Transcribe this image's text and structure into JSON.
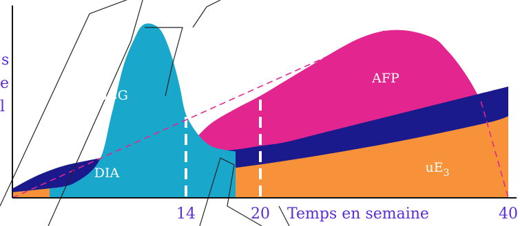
{
  "chart_data": {
    "type": "area",
    "xlabel": "Temps en semaine",
    "x_ticks": [
      "14",
      "20",
      "40"
    ],
    "y_label_fragments": [
      "s",
      "e",
      "l"
    ],
    "xlim": [
      0,
      40
    ],
    "ylim": [
      0,
      100
    ],
    "markers": [
      14,
      20
    ],
    "series": [
      {
        "name": "uE3",
        "color": "#f7923a",
        "x": [
          0,
          10,
          20,
          30,
          38,
          40
        ],
        "y": [
          3,
          10,
          18,
          29,
          40,
          44
        ]
      },
      {
        "name": "DIA",
        "color": "#1a1a8c",
        "x": [
          0,
          2,
          4,
          6,
          8,
          10,
          12,
          14,
          16,
          18,
          20,
          22,
          25,
          28,
          31,
          34,
          37,
          40
        ],
        "y": [
          5,
          12,
          17,
          20,
          22.5,
          24,
          24.5,
          24.5,
          25,
          26,
          28,
          30,
          35,
          40,
          45,
          50,
          55,
          60
        ]
      },
      {
        "name": "AFP",
        "color": "#e3258f",
        "x": [
          12,
          14,
          16,
          18,
          20,
          22,
          24,
          26,
          28,
          30,
          32,
          34,
          35,
          36,
          37,
          37.8
        ],
        "y": [
          25,
          28,
          40,
          48,
          55,
          63,
          71,
          79,
          86,
          90,
          90,
          86,
          80,
          72,
          62,
          52
        ]
      },
      {
        "name": "hCG",
        "color": "#1aa7cc",
        "x": [
          3,
          5,
          7,
          8,
          9,
          10,
          10.5,
          11,
          11.5,
          12,
          12.5,
          13,
          13.5,
          14,
          15,
          16,
          17,
          18
        ],
        "y": [
          5,
          8,
          20,
          45,
          72,
          88,
          93,
          94,
          93,
          90,
          83,
          73,
          60,
          45,
          34,
          28,
          26,
          25
        ]
      }
    ],
    "labels": [
      {
        "series": "hCG",
        "text": "hCG"
      },
      {
        "series": "DIA",
        "text": "DIA"
      },
      {
        "series": "AFP",
        "text": "AFP"
      },
      {
        "series": "uE3",
        "text": "uE",
        "sub": "3"
      }
    ],
    "annotations": [
      "dashed line from origin to AFP peak",
      "dashed drop from AFP tail to 40"
    ],
    "grid": false,
    "legend": "none"
  }
}
